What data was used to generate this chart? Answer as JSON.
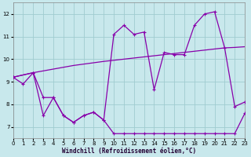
{
  "xlabel": "Windchill (Refroidissement éolien,°C)",
  "xlim": [
    0,
    23
  ],
  "ylim": [
    6.5,
    12.5
  ],
  "xticks": [
    0,
    1,
    2,
    3,
    4,
    5,
    6,
    7,
    8,
    9,
    10,
    11,
    12,
    13,
    14,
    15,
    16,
    17,
    18,
    19,
    20,
    21,
    22,
    23
  ],
  "yticks": [
    7,
    8,
    9,
    10,
    11,
    12
  ],
  "bg_color": "#c8e8ec",
  "grid_color": "#a0ccd0",
  "line_color": "#8800aa",
  "line1_x": [
    0,
    2,
    3,
    4,
    5,
    6,
    7,
    8,
    9,
    10,
    11,
    12,
    13,
    14,
    15,
    16,
    17,
    18,
    19,
    20,
    21,
    22,
    23
  ],
  "line1_y": [
    9.2,
    9.4,
    9.48,
    9.56,
    9.64,
    9.72,
    9.78,
    9.84,
    9.9,
    9.95,
    10.0,
    10.05,
    10.1,
    10.15,
    10.2,
    10.25,
    10.3,
    10.35,
    10.4,
    10.45,
    10.5,
    10.52,
    10.55
  ],
  "line2_x": [
    0,
    1,
    2,
    3,
    4,
    5,
    6,
    7,
    8,
    9,
    10,
    11,
    12,
    13,
    14,
    15,
    16,
    17,
    18,
    19,
    20,
    21,
    22,
    23
  ],
  "line2_y": [
    9.2,
    8.9,
    9.4,
    8.3,
    8.3,
    7.5,
    7.2,
    7.5,
    7.65,
    7.3,
    11.1,
    11.5,
    11.1,
    11.2,
    8.65,
    10.3,
    10.2,
    10.2,
    11.5,
    12.0,
    12.1,
    10.5,
    7.9,
    8.1
  ],
  "line3_x": [
    0,
    2,
    3,
    4,
    5,
    6,
    7,
    8,
    9,
    10,
    11,
    12,
    13,
    14,
    15,
    16,
    17,
    18,
    19,
    20,
    21,
    22,
    23
  ],
  "line3_y": [
    9.2,
    9.4,
    7.5,
    8.3,
    7.5,
    7.2,
    7.5,
    7.65,
    7.3,
    6.7,
    6.7,
    6.7,
    6.7,
    6.7,
    6.7,
    6.7,
    6.7,
    6.7,
    6.7,
    6.7,
    6.7,
    6.7,
    7.6
  ]
}
